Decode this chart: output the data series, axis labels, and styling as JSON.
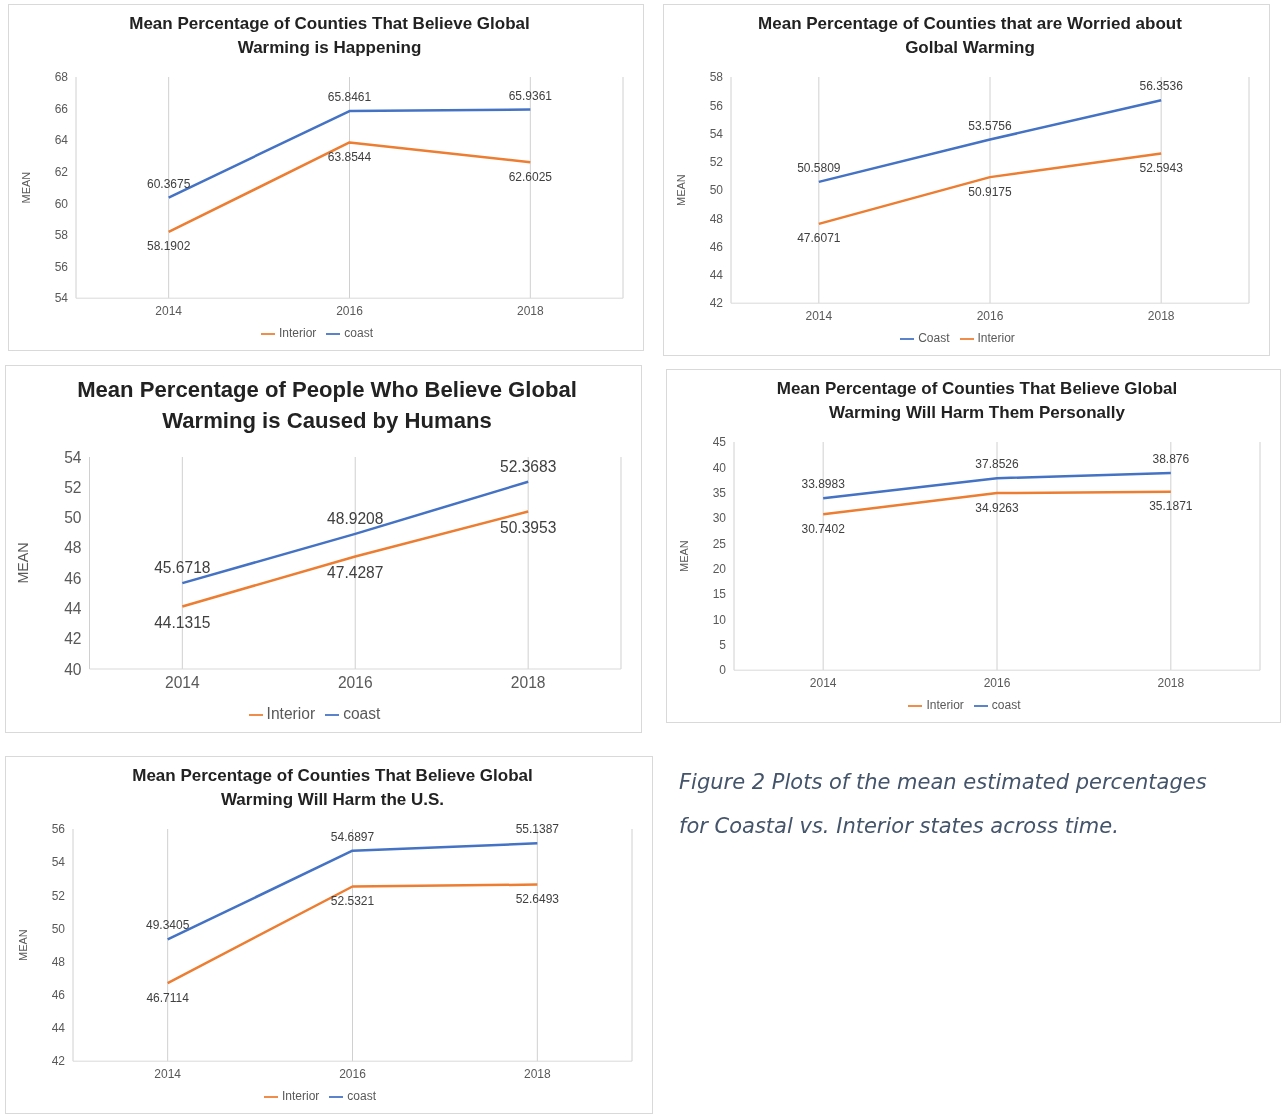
{
  "chart_data": [
    {
      "type": "line",
      "title": "Mean Percentage of Counties That Believe Global Warming is Happening",
      "ylabel": "MEAN",
      "categories": [
        "2014",
        "2016",
        "2018"
      ],
      "ylim": [
        54,
        68
      ],
      "yticks": [
        54,
        56,
        58,
        60,
        62,
        64,
        66,
        68
      ],
      "grid": "x",
      "legend": "bottom",
      "data_labels": true,
      "series": [
        {
          "name": "coast",
          "color": "#4472c4",
          "values": [
            60.3675,
            65.8461,
            65.9361
          ]
        },
        {
          "name": "Interior",
          "color": "#ed7d31",
          "values": [
            58.1902,
            63.8544,
            62.6025
          ]
        }
      ]
    },
    {
      "type": "line",
      "title": "Mean Percentage of Counties that are Worried about Golbal Warming",
      "ylabel": "MEAN",
      "categories": [
        "2014",
        "2016",
        "2018"
      ],
      "ylim": [
        42,
        58
      ],
      "yticks": [
        42,
        44,
        46,
        48,
        50,
        52,
        54,
        56,
        58
      ],
      "grid": "x",
      "legend": "bottom",
      "data_labels": true,
      "series": [
        {
          "name": "Coast",
          "color": "#4472c4",
          "values": [
            50.5809,
            53.5756,
            56.3536
          ]
        },
        {
          "name": "Interior",
          "color": "#ed7d31",
          "values": [
            47.6071,
            50.9175,
            52.5943
          ]
        }
      ]
    },
    {
      "type": "line",
      "title": "Mean Percentage of People Who Believe Global Warming is Caused by Humans",
      "ylabel": "MEAN",
      "categories": [
        "2014",
        "2016",
        "2018"
      ],
      "ylim": [
        40,
        54
      ],
      "yticks": [
        40,
        42,
        44,
        46,
        48,
        50,
        52,
        54
      ],
      "grid": "x",
      "legend": "bottom",
      "data_labels": true,
      "series": [
        {
          "name": "coast",
          "color": "#4472c4",
          "values": [
            45.6718,
            48.9208,
            52.3683
          ]
        },
        {
          "name": "Interior",
          "color": "#ed7d31",
          "values": [
            44.1315,
            47.4287,
            50.3953
          ]
        }
      ]
    },
    {
      "type": "line",
      "title": "Mean Percentage of Counties That Believe Global Warming Will Harm Them Personally",
      "ylabel": "MEAN",
      "categories": [
        "2014",
        "2016",
        "2018"
      ],
      "ylim": [
        0,
        45
      ],
      "yticks": [
        0,
        5,
        10,
        15,
        20,
        25,
        30,
        35,
        40,
        45
      ],
      "grid": "x",
      "legend": "bottom",
      "data_labels": true,
      "series": [
        {
          "name": "coast",
          "color": "#4472c4",
          "values": [
            33.8983,
            37.8526,
            38.876
          ]
        },
        {
          "name": "Interior",
          "color": "#ed7d31",
          "values": [
            30.7402,
            34.9263,
            35.1871
          ]
        }
      ]
    },
    {
      "type": "line",
      "title": "Mean Percentage of Counties That Believe Global Warming Will Harm the U.S.",
      "ylabel": "MEAN",
      "categories": [
        "2014",
        "2016",
        "2018"
      ],
      "ylim": [
        42,
        56
      ],
      "yticks": [
        42,
        44,
        46,
        48,
        50,
        52,
        54,
        56
      ],
      "grid": "x",
      "legend": "bottom",
      "data_labels": true,
      "series": [
        {
          "name": "coast",
          "color": "#4472c4",
          "values": [
            49.3405,
            54.6897,
            55.1387
          ]
        },
        {
          "name": "Interior",
          "color": "#ed7d31",
          "values": [
            46.7114,
            52.5321,
            52.6493
          ]
        }
      ]
    },
    {
      "type": "other",
      "annotations": [
        "Figure 2 Plots of the mean estimated percentages for Coastal vs. Interior states across time."
      ]
    }
  ]
}
